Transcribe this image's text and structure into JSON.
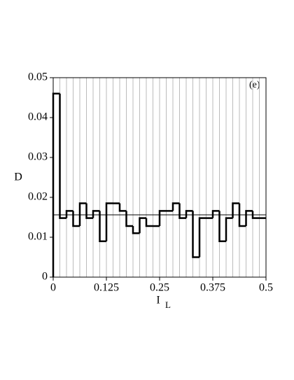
{
  "chart_data": {
    "type": "histogram",
    "ylabel": "D",
    "xlabel": "I",
    "xlabel_subscript": "L",
    "annotation": "(e)",
    "bins": [
      0,
      0.015625,
      0.03125,
      0.046875,
      0.0625,
      0.078125,
      0.09375,
      0.109375,
      0.125,
      0.140625,
      0.15625,
      0.171875,
      0.1875,
      0.203125,
      0.21875,
      0.234375,
      0.25,
      0.265625,
      0.28125,
      0.296875,
      0.3125,
      0.328125,
      0.34375,
      0.359375,
      0.375,
      0.390625,
      0.40625,
      0.421875,
      0.4375,
      0.453125,
      0.46875,
      0.484375,
      0.5
    ],
    "values": [
      0.046,
      0.0148,
      0.0166,
      0.0128,
      0.0185,
      0.0148,
      0.0166,
      0.009,
      0.0185,
      0.0185,
      0.0166,
      0.0128,
      0.011,
      0.0148,
      0.0128,
      0.0128,
      0.0166,
      0.0166,
      0.0185,
      0.0148,
      0.0166,
      0.005,
      0.0148,
      0.0148,
      0.0166,
      0.009,
      0.0148,
      0.0185,
      0.0128,
      0.0166,
      0.0148,
      0.0148
    ],
    "color": "#000000",
    "reference_line": 0.015625,
    "xlim": [
      0,
      0.5
    ],
    "xticks": [
      0,
      0.125,
      0.25,
      0.375,
      0.5
    ],
    "ylim": [
      0,
      0.05
    ],
    "yticks": [
      0,
      0.01,
      0.02,
      0.03,
      0.04,
      0.05
    ],
    "grid": true
  }
}
